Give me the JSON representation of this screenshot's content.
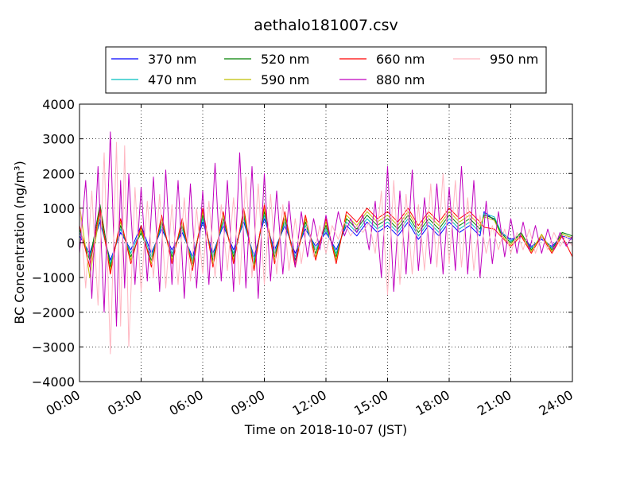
{
  "chart_data": {
    "type": "line",
    "title": "aethalo181007.csv",
    "xlabel": "Time on 2018-10-07 (JST)",
    "ylabel": "BC Concentration (ng/m³)",
    "ylim": [
      -4000,
      4000
    ],
    "y_ticks": [
      4000,
      3000,
      2000,
      1000,
      0,
      -1000,
      -2000,
      -3000,
      -4000
    ],
    "y_tick_labels": [
      "4000",
      "3000",
      "2000",
      "1000",
      "0",
      "−1000",
      "−2000",
      "−3000",
      "−4000"
    ],
    "xlim_hours": [
      0,
      24
    ],
    "x_ticks_hours": [
      0,
      3,
      6,
      9,
      12,
      15,
      18,
      21,
      24
    ],
    "x_tick_labels": [
      "00:00",
      "03:00",
      "06:00",
      "09:00",
      "12:00",
      "15:00",
      "18:00",
      "21:00",
      "24:00"
    ],
    "grid": true,
    "legend_position": "top-center",
    "series": [
      {
        "name": "370 nm",
        "color": "#0000ff",
        "x": [
          0.0,
          0.5,
          1.0,
          1.5,
          2.0,
          2.5,
          3.0,
          3.5,
          4.0,
          4.5,
          5.0,
          5.5,
          6.0,
          6.5,
          7.0,
          7.5,
          8.0,
          8.5,
          9.0,
          9.5,
          10.0,
          10.5,
          11.0,
          11.5,
          12.0,
          12.5,
          13.0,
          13.5,
          14.0,
          14.5,
          15.0,
          15.5,
          16.0,
          16.5,
          17.0,
          17.5,
          18.0,
          18.5,
          19.0,
          19.5,
          19.7,
          20.2,
          20.5,
          21.0,
          21.5,
          22.0,
          22.5,
          23.0,
          23.5,
          24.0
        ],
        "y": [
          200,
          -300,
          600,
          -500,
          300,
          -200,
          500,
          -300,
          400,
          -200,
          300,
          -400,
          600,
          -300,
          500,
          -200,
          600,
          -400,
          700,
          -200,
          500,
          -300,
          400,
          -100,
          300,
          -200,
          500,
          200,
          600,
          300,
          500,
          200,
          600,
          100,
          500,
          200,
          600,
          300,
          500,
          200,
          900,
          650,
          300,
          100,
          200,
          -100,
          100,
          -100,
          200,
          100
        ]
      },
      {
        "name": "470 nm",
        "color": "#00bfbf",
        "x": [
          0.0,
          0.5,
          1.0,
          1.5,
          2.0,
          2.5,
          3.0,
          3.5,
          4.0,
          4.5,
          5.0,
          5.5,
          6.0,
          6.5,
          7.0,
          7.5,
          8.0,
          8.5,
          9.0,
          9.5,
          10.0,
          10.5,
          11.0,
          11.5,
          12.0,
          12.5,
          13.0,
          13.5,
          14.0,
          14.5,
          15.0,
          15.5,
          16.0,
          16.5,
          17.0,
          17.5,
          18.0,
          18.5,
          19.0,
          19.5,
          19.7,
          20.2,
          20.5,
          21.0,
          21.5,
          22.0,
          22.5,
          23.0,
          23.5,
          24.0
        ],
        "y": [
          300,
          -400,
          700,
          -600,
          400,
          -300,
          400,
          -400,
          500,
          -300,
          400,
          -500,
          700,
          -400,
          600,
          -300,
          700,
          -500,
          800,
          -300,
          600,
          -400,
          500,
          -200,
          400,
          -300,
          600,
          300,
          700,
          400,
          600,
          300,
          700,
          200,
          600,
          300,
          700,
          400,
          600,
          300,
          850,
          750,
          350,
          50,
          250,
          -150,
          150,
          -150,
          250,
          150
        ]
      },
      {
        "name": "520 nm",
        "color": "#008000",
        "x": [
          0.0,
          0.5,
          1.0,
          1.5,
          2.0,
          2.5,
          3.0,
          3.5,
          4.0,
          4.5,
          5.0,
          5.5,
          6.0,
          6.5,
          7.0,
          7.5,
          8.0,
          8.5,
          9.0,
          9.5,
          10.0,
          10.5,
          11.0,
          11.5,
          12.0,
          12.5,
          13.0,
          13.5,
          14.0,
          14.5,
          15.0,
          15.5,
          16.0,
          16.5,
          17.0,
          17.5,
          18.0,
          18.5,
          19.0,
          19.5,
          19.7,
          20.2,
          20.5,
          21.0,
          21.5,
          22.0,
          22.5,
          23.0,
          23.5,
          24.0
        ],
        "y": [
          400,
          -500,
          1100,
          -700,
          500,
          -400,
          300,
          -500,
          600,
          -400,
          500,
          -600,
          800,
          -500,
          700,
          -400,
          800,
          -600,
          900,
          -400,
          700,
          -500,
          600,
          -300,
          500,
          -400,
          700,
          400,
          800,
          500,
          700,
          400,
          800,
          300,
          700,
          400,
          800,
          500,
          700,
          400,
          800,
          700,
          300,
          0,
          300,
          -200,
          200,
          -200,
          300,
          200
        ]
      },
      {
        "name": "590 nm",
        "color": "#bfbf00",
        "x": [
          0.0,
          0.5,
          1.0,
          1.5,
          2.0,
          2.5,
          3.0,
          3.5,
          4.0,
          4.5,
          5.0,
          5.5,
          6.0,
          6.5,
          7.0,
          7.5,
          8.0,
          8.5,
          9.0,
          9.5,
          10.0,
          10.5,
          11.0,
          11.5,
          12.0,
          12.5,
          13.0,
          13.5,
          14.0,
          14.5,
          15.0,
          15.5,
          16.0,
          16.5,
          17.0,
          17.5,
          18.0,
          18.5,
          19.0,
          19.5,
          19.7,
          20.2,
          20.5,
          21.0,
          21.5,
          22.0,
          22.5,
          23.0,
          23.5,
          24.0
        ],
        "y": [
          1100,
          -1000,
          900,
          -800,
          600,
          -500,
          400,
          -600,
          700,
          -500,
          600,
          -700,
          900,
          -600,
          800,
          -500,
          900,
          -700,
          1000,
          -500,
          800,
          -600,
          700,
          -400,
          600,
          -500,
          800,
          500,
          900,
          600,
          800,
          500,
          900,
          400,
          800,
          500,
          900,
          600,
          800,
          500,
          750,
          650,
          250,
          -50,
          250,
          -250,
          250,
          -250,
          250,
          150
        ]
      },
      {
        "name": "660 nm",
        "color": "#ff0000",
        "x": [
          0.0,
          0.5,
          1.0,
          1.5,
          2.0,
          2.5,
          3.0,
          3.5,
          4.0,
          4.5,
          5.0,
          5.5,
          6.0,
          6.5,
          7.0,
          7.5,
          8.0,
          8.5,
          9.0,
          9.5,
          10.0,
          10.5,
          11.0,
          11.5,
          12.0,
          12.5,
          13.0,
          13.5,
          14.0,
          14.5,
          15.0,
          15.5,
          16.0,
          16.5,
          17.0,
          17.5,
          18.0,
          18.5,
          19.0,
          19.5,
          19.7,
          20.2,
          20.5,
          21.0,
          21.5,
          22.0,
          22.5,
          23.0,
          23.5,
          24.0
        ],
        "y": [
          500,
          -700,
          1000,
          -900,
          700,
          -600,
          500,
          -700,
          800,
          -600,
          700,
          -800,
          1000,
          -700,
          900,
          -600,
          1000,
          -800,
          1100,
          -600,
          900,
          -700,
          800,
          -500,
          700,
          -600,
          900,
          600,
          1000,
          700,
          900,
          600,
          1000,
          500,
          900,
          600,
          1000,
          700,
          900,
          600,
          450,
          400,
          200,
          -100,
          200,
          -300,
          200,
          -300,
          200,
          -400
        ]
      },
      {
        "name": "880 nm",
        "color": "#bf00bf",
        "x": [
          0.0,
          0.3,
          0.6,
          0.9,
          1.2,
          1.5,
          1.8,
          2.0,
          2.2,
          2.4,
          2.7,
          3.0,
          3.3,
          3.6,
          3.9,
          4.2,
          4.5,
          4.8,
          5.1,
          5.4,
          5.7,
          6.0,
          6.3,
          6.6,
          6.9,
          7.2,
          7.5,
          7.8,
          8.1,
          8.4,
          8.7,
          9.0,
          9.3,
          9.6,
          9.9,
          10.2,
          10.5,
          10.8,
          11.1,
          11.4,
          11.7,
          12.0,
          12.3,
          12.6,
          12.9,
          13.2,
          13.5,
          13.8,
          14.1,
          14.4,
          14.7,
          15.0,
          15.3,
          15.6,
          15.9,
          16.2,
          16.5,
          16.8,
          17.1,
          17.4,
          17.7,
          18.0,
          18.3,
          18.6,
          18.9,
          19.2,
          19.5,
          19.8,
          20.1,
          20.4,
          20.7,
          21.0,
          21.3,
          21.6,
          21.9,
          22.2,
          22.5,
          22.8,
          23.1,
          23.4,
          23.7,
          24.0
        ],
        "y": [
          -300,
          1800,
          -1600,
          2200,
          -2000,
          3200,
          -2400,
          1800,
          -1300,
          2000,
          -1200,
          1600,
          -1100,
          1900,
          -1400,
          2100,
          -1200,
          1800,
          -1600,
          1700,
          -1300,
          1500,
          -1200,
          2300,
          -1100,
          1800,
          -1400,
          2600,
          -1300,
          2200,
          -1600,
          2000,
          -1100,
          1500,
          -900,
          1200,
          -700,
          900,
          -400,
          700,
          -200,
          800,
          -100,
          900,
          200,
          700,
          300,
          800,
          -200,
          1200,
          -1000,
          2200,
          -1400,
          1500,
          -900,
          2100,
          -800,
          1300,
          -600,
          1700,
          -900,
          1600,
          -800,
          2200,
          -900,
          1800,
          -1000,
          1200,
          -600,
          900,
          -400,
          700,
          -300,
          600,
          -200,
          500,
          -300,
          400,
          -200,
          300,
          -100,
          200
        ]
      },
      {
        "name": "950 nm",
        "color": "#ffb6c1",
        "x": [
          0.0,
          0.3,
          0.6,
          0.9,
          1.2,
          1.5,
          1.8,
          2.0,
          2.2,
          2.4,
          2.7,
          3.0,
          3.3,
          3.6,
          3.9,
          4.2,
          4.5,
          4.8,
          5.1,
          5.4,
          5.7,
          6.0,
          6.3,
          6.6,
          6.9,
          7.2,
          7.5,
          7.8,
          8.1,
          8.4,
          8.7,
          9.0,
          9.3,
          9.6,
          9.9,
          10.2,
          10.5,
          10.8,
          11.1,
          11.4,
          11.7,
          12.0,
          12.3,
          12.6,
          12.9,
          13.2,
          13.5,
          13.8,
          14.1,
          14.4,
          14.7,
          15.0,
          15.3,
          15.6,
          15.9,
          16.2,
          16.5,
          16.8,
          17.1,
          17.4,
          17.7,
          18.0,
          18.3,
          18.6,
          18.9,
          19.2,
          19.5,
          19.8,
          20.1,
          20.4,
          20.7,
          21.0,
          21.3,
          21.6,
          21.9,
          22.2,
          22.5,
          22.8,
          23.1,
          23.4,
          23.7,
          24.0
        ],
        "y": [
          1200,
          -1300,
          1500,
          -1800,
          2600,
          -3200,
          2900,
          -2400,
          2800,
          -3000,
          1600,
          -1400,
          1200,
          -1000,
          1400,
          -1300,
          1100,
          -1200,
          1300,
          -1100,
          1000,
          -900,
          1200,
          -1000,
          1100,
          -800,
          1300,
          -1200,
          1900,
          -1000,
          1700,
          -1200,
          1400,
          -900,
          1100,
          -800,
          700,
          -600,
          600,
          -400,
          500,
          -300,
          500,
          100,
          600,
          200,
          500,
          300,
          600,
          -300,
          1500,
          -1500,
          1800,
          -1200,
          1400,
          -900,
          1100,
          -800,
          1700,
          -700,
          2000,
          -600,
          1800,
          -700,
          1300,
          -800,
          800,
          -300,
          500,
          -200,
          400,
          -300,
          300,
          -200,
          400,
          -300,
          200,
          -200,
          300,
          -100,
          200,
          -100
        ]
      }
    ]
  }
}
